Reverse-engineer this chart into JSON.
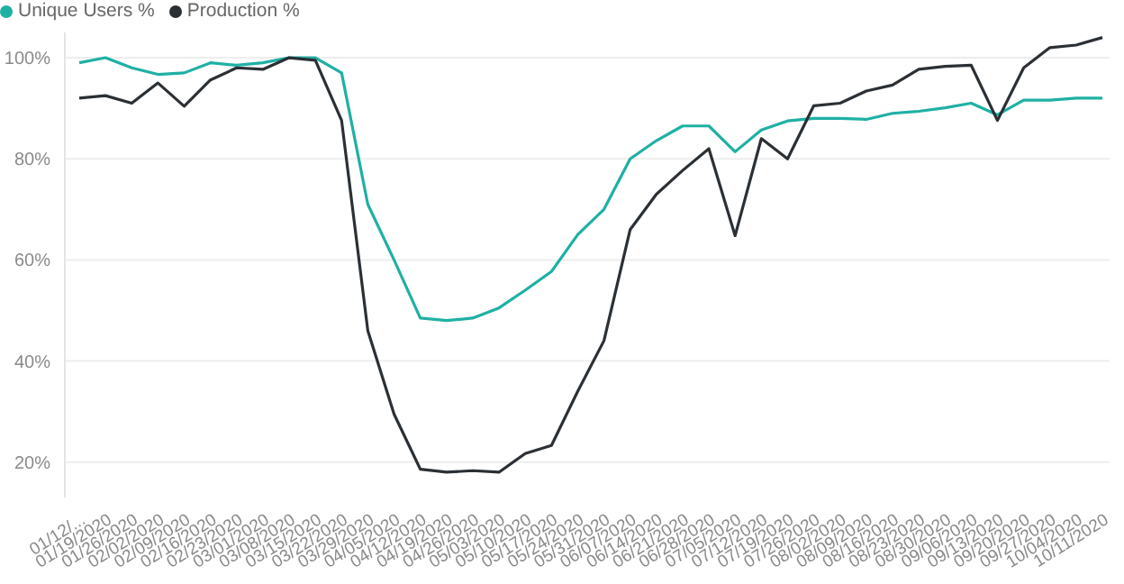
{
  "chart_data": {
    "type": "line",
    "categories": [
      "01/12/...",
      "01/19/2020",
      "01/26/2020",
      "02/02/2020",
      "02/09/2020",
      "02/16/2020",
      "02/23/2020",
      "03/01/2020",
      "03/08/2020",
      "03/15/2020",
      "03/22/2020",
      "03/29/2020",
      "04/05/2020",
      "04/12/2020",
      "04/19/2020",
      "04/26/2020",
      "05/03/2020",
      "05/10/2020",
      "05/17/2020",
      "05/24/2020",
      "05/31/2020",
      "06/07/2020",
      "06/14/2020",
      "06/21/2020",
      "06/28/2020",
      "07/05/2020",
      "07/12/2020",
      "07/19/2020",
      "07/26/2020",
      "08/02/2020",
      "08/09/2020",
      "08/16/2020",
      "08/23/2020",
      "08/30/2020",
      "09/06/2020",
      "09/13/2020",
      "09/20/2020",
      "09/27/2020",
      "10/04/2020",
      "10/11/2020"
    ],
    "series": [
      {
        "name": "Unique Users %",
        "color": "#1fb0a4",
        "values": [
          99,
          100,
          98,
          96.7,
          97,
          99,
          98.5,
          99,
          100,
          100,
          97,
          71,
          60,
          48.5,
          48,
          48.5,
          50.5,
          54,
          57.7,
          65,
          70,
          80,
          83.6,
          86.5,
          86.5,
          81.4,
          85.7,
          87.5,
          88,
          88,
          87.8,
          89,
          89.4,
          90.1,
          91,
          88.7,
          91.6,
          91.6,
          92,
          92
        ]
      },
      {
        "name": "Production %",
        "color": "#2b3035",
        "values": [
          92,
          92.5,
          91,
          95,
          90.4,
          95.6,
          98,
          97.7,
          100,
          99.5,
          87.6,
          46,
          29.5,
          18.6,
          18,
          18.3,
          18,
          21.7,
          23.3,
          34,
          44,
          66,
          73,
          77.7,
          82,
          64.8,
          84,
          80,
          90.5,
          91,
          93.4,
          94.6,
          97.7,
          98.3,
          98.5,
          87.6,
          98,
          102,
          102.5,
          104
        ]
      }
    ],
    "yticks": [
      {
        "value": 20,
        "label": "20%"
      },
      {
        "value": 40,
        "label": "40%"
      },
      {
        "value": 60,
        "label": "60%"
      },
      {
        "value": 80,
        "label": "80%"
      },
      {
        "value": 100,
        "label": "100%"
      }
    ],
    "ylim": [
      13,
      105
    ],
    "grid": "y",
    "legend": "top left",
    "marker": "none",
    "line_style": "solid"
  }
}
